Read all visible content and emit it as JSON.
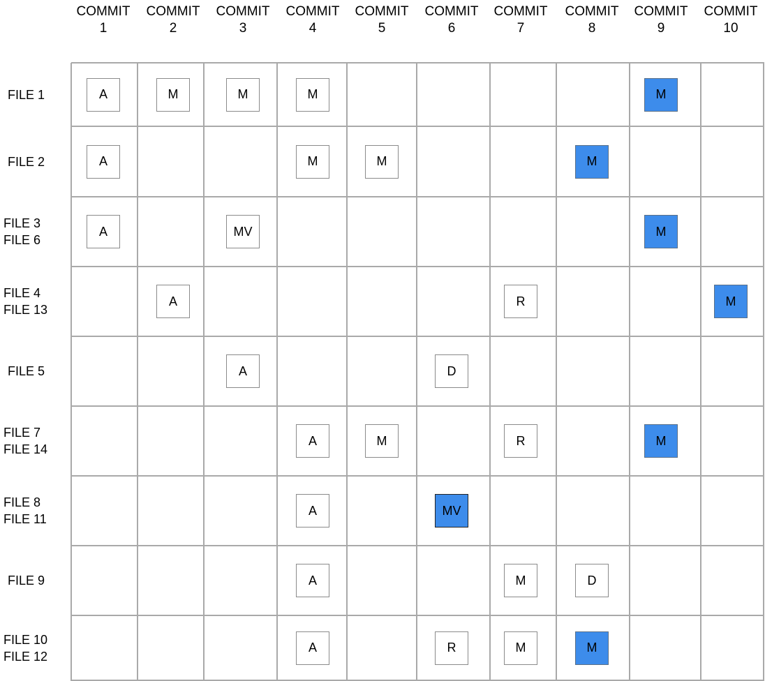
{
  "columns": [
    [
      "COMMIT",
      "1"
    ],
    [
      "COMMIT",
      "2"
    ],
    [
      "COMMIT",
      "3"
    ],
    [
      "COMMIT",
      "4"
    ],
    [
      "COMMIT",
      "5"
    ],
    [
      "COMMIT",
      "6"
    ],
    [
      "COMMIT",
      "7"
    ],
    [
      "COMMIT",
      "8"
    ],
    [
      "COMMIT",
      "9"
    ],
    [
      "COMMIT",
      "10"
    ]
  ],
  "rows": [
    {
      "labels": [
        "FILE 1"
      ],
      "cells": [
        "A",
        "M",
        "M",
        "M",
        "",
        "",
        "",
        "",
        "M*",
        ""
      ]
    },
    {
      "labels": [
        "FILE 2"
      ],
      "cells": [
        "A",
        "",
        "",
        "M",
        "M",
        "",
        "",
        "M*",
        "",
        ""
      ]
    },
    {
      "labels": [
        "FILE 3",
        "FILE 6"
      ],
      "cells": [
        "A",
        "",
        "MV",
        "",
        "",
        "",
        "",
        "",
        "M*",
        ""
      ]
    },
    {
      "labels": [
        "FILE 4",
        "FILE 13"
      ],
      "cells": [
        "",
        "A",
        "",
        "",
        "",
        "",
        "R",
        "",
        "",
        "M*"
      ]
    },
    {
      "labels": [
        "FILE 5"
      ],
      "cells": [
        "",
        "",
        "A",
        "",
        "",
        "D",
        "",
        "",
        "",
        ""
      ]
    },
    {
      "labels": [
        "FILE 7",
        "FILE 14"
      ],
      "cells": [
        "",
        "",
        "",
        "A",
        "M",
        "",
        "R",
        "",
        "M*",
        ""
      ]
    },
    {
      "labels": [
        "FILE 8",
        "FILE 11"
      ],
      "cells": [
        "",
        "",
        "",
        "A",
        "",
        "MV*",
        "",
        "",
        "",
        ""
      ]
    },
    {
      "labels": [
        "FILE 9"
      ],
      "cells": [
        "",
        "",
        "",
        "A",
        "",
        "",
        "M",
        "D",
        "",
        ""
      ]
    },
    {
      "labels": [
        "FILE 10",
        "FILE 12"
      ],
      "cells": [
        "",
        "",
        "",
        "A",
        "",
        "R",
        "M",
        "M*",
        "",
        ""
      ]
    }
  ],
  "colors": {
    "highlight": "#3d8ceb",
    "grid": "#a9a9a9"
  }
}
